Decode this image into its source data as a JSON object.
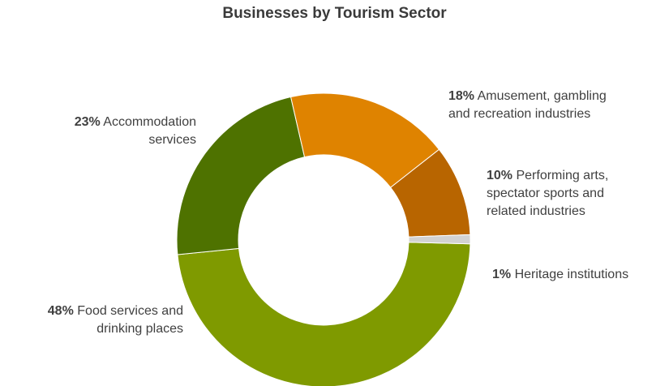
{
  "chart_data": {
    "type": "pie",
    "title": "Businesses by Tourism Sector",
    "donut": true,
    "slices": [
      {
        "name_line1": "Food services and",
        "name_line2": "drinking places",
        "pct_label": "48%",
        "value": 48,
        "color": "#7f9a00"
      },
      {
        "name_line1": "Accommodation",
        "name_line2": "services",
        "pct_label": "23%",
        "value": 23,
        "color": "#4e7200"
      },
      {
        "name_line1": "Amusement, gambling",
        "name_line2": "and recreation industries",
        "pct_label": "18%",
        "value": 18,
        "color": "#df8300"
      },
      {
        "name_line1": "Performing arts,",
        "name_line2": "spectator sports and",
        "name_line3": "related industries",
        "pct_label": "10%",
        "value": 10,
        "color": "#b86500"
      },
      {
        "name_line1": "Heritage institutions",
        "pct_label": "1%",
        "value": 1,
        "color": "#d2d2d2"
      }
    ]
  }
}
